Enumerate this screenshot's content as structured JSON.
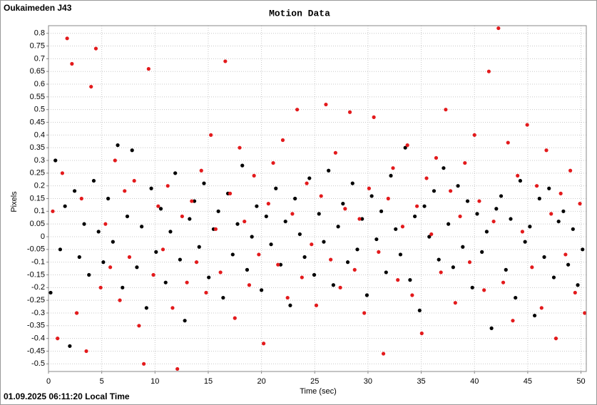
{
  "chart_data": {
    "type": "scatter",
    "title": "Motion Data",
    "station": "Oukaimeden J43",
    "timestamp": "01.09.2025 06:11:20 Local Time",
    "x_label": "Time (sec)",
    "y_label": "Pixels",
    "grid": true,
    "xlim": [
      0,
      50.5
    ],
    "ylim": [
      -0.53,
      0.83
    ],
    "xticks": [
      0,
      5,
      10,
      15,
      20,
      25,
      30,
      35,
      40,
      45,
      50
    ],
    "yticks": [
      0.8,
      0.75,
      0.7,
      0.65,
      0.6,
      0.55,
      0.5,
      0.45,
      0.4,
      0.35,
      0.3,
      0.25,
      0.2,
      0.15,
      0.1,
      0.05,
      0,
      -0.05,
      -0.1,
      -0.15,
      -0.2,
      -0.25,
      -0.3,
      -0.35,
      -0.4,
      -0.45,
      -0.5
    ],
    "series": [
      {
        "color": "#000000",
        "x": [
          0.2,
          0.65,
          1.1,
          1.55,
          2.0,
          2.45,
          2.9,
          3.35,
          3.8,
          4.25,
          4.7,
          5.15,
          5.6,
          6.05,
          6.5,
          6.95,
          7.4,
          7.85,
          8.3,
          8.75,
          9.2,
          9.65,
          10.1,
          10.55,
          11.0,
          11.45,
          11.9,
          12.35,
          12.8,
          13.25,
          13.7,
          14.15,
          14.6,
          15.05,
          15.5,
          15.95,
          16.4,
          16.85,
          17.3,
          17.75,
          18.2,
          18.65,
          19.1,
          19.55,
          20.0,
          20.45,
          20.9,
          21.35,
          21.8,
          22.25,
          22.7,
          23.15,
          23.6,
          24.05,
          24.5,
          24.95,
          25.4,
          25.85,
          26.3,
          26.75,
          27.2,
          27.65,
          28.1,
          28.55,
          29.0,
          29.45,
          29.9,
          30.35,
          30.8,
          31.25,
          31.7,
          32.15,
          32.6,
          33.05,
          33.5,
          33.95,
          34.4,
          34.85,
          35.3,
          35.75,
          36.2,
          36.65,
          37.1,
          37.55,
          38.0,
          38.45,
          38.9,
          39.35,
          39.8,
          40.25,
          40.7,
          41.15,
          41.6,
          42.05,
          42.5,
          42.95,
          43.4,
          43.85,
          44.3,
          44.75,
          45.2,
          45.65,
          46.1,
          46.55,
          47.0,
          47.45,
          47.9,
          48.35,
          48.8,
          49.25,
          49.7,
          50.15
        ],
        "values": [
          -0.22,
          0.3,
          -0.05,
          0.12,
          -0.43,
          0.18,
          -0.08,
          0.05,
          -0.15,
          0.22,
          0.02,
          -0.1,
          0.15,
          -0.02,
          0.36,
          -0.2,
          0.08,
          0.34,
          -0.12,
          0.04,
          -0.28,
          0.19,
          -0.06,
          0.11,
          -0.18,
          0.02,
          0.25,
          -0.09,
          -0.33,
          0.07,
          0.14,
          -0.04,
          0.21,
          -0.16,
          0.03,
          0.1,
          -0.24,
          0.17,
          -0.07,
          0.05,
          0.28,
          -0.13,
          0.0,
          0.12,
          -0.21,
          0.08,
          -0.03,
          0.19,
          -0.11,
          0.06,
          -0.27,
          0.15,
          0.01,
          -0.08,
          0.23,
          -0.15,
          0.09,
          -0.02,
          0.26,
          -0.19,
          0.04,
          0.13,
          -0.1,
          0.21,
          -0.05,
          0.07,
          -0.23,
          0.16,
          -0.01,
          0.1,
          -0.14,
          0.24,
          0.03,
          -0.07,
          0.35,
          -0.17,
          0.08,
          -0.29,
          0.12,
          0.0,
          0.18,
          -0.09,
          0.27,
          0.05,
          -0.12,
          0.2,
          -0.04,
          0.14,
          -0.2,
          0.09,
          -0.06,
          0.02,
          -0.36,
          0.11,
          0.16,
          -0.13,
          0.07,
          -0.24,
          0.22,
          -0.02,
          0.04,
          -0.31,
          0.15,
          -0.08,
          0.19,
          -0.16,
          0.06,
          0.1,
          -0.11,
          0.03,
          -0.19,
          -0.05
        ]
      },
      {
        "color": "#e31a1c",
        "x": [
          0.4,
          0.85,
          1.3,
          1.75,
          2.2,
          2.65,
          3.1,
          3.55,
          4.0,
          4.45,
          4.9,
          5.35,
          5.8,
          6.25,
          6.7,
          7.15,
          7.6,
          8.05,
          8.5,
          8.95,
          9.4,
          9.85,
          10.3,
          10.75,
          11.2,
          11.65,
          12.1,
          12.55,
          13.0,
          13.45,
          13.9,
          14.35,
          14.8,
          15.25,
          15.7,
          16.15,
          16.6,
          17.05,
          17.5,
          17.95,
          18.4,
          18.85,
          19.3,
          19.75,
          20.2,
          20.65,
          21.1,
          21.55,
          22.0,
          22.45,
          22.9,
          23.35,
          23.8,
          24.25,
          24.7,
          25.15,
          25.6,
          26.05,
          26.5,
          26.95,
          27.4,
          27.85,
          28.3,
          28.75,
          29.2,
          29.65,
          30.1,
          30.55,
          31.0,
          31.45,
          31.9,
          32.35,
          32.8,
          33.25,
          33.7,
          34.15,
          34.6,
          35.05,
          35.5,
          35.95,
          36.4,
          36.85,
          37.3,
          37.75,
          38.2,
          38.65,
          39.1,
          39.55,
          40.0,
          40.45,
          40.9,
          41.35,
          41.8,
          42.25,
          42.7,
          43.15,
          43.6,
          44.05,
          44.5,
          44.95,
          45.4,
          45.85,
          46.3,
          46.75,
          47.2,
          47.65,
          48.1,
          48.55,
          49.0,
          49.45,
          49.9,
          50.35
        ],
        "values": [
          0.1,
          -0.4,
          0.25,
          0.78,
          0.68,
          -0.3,
          0.15,
          -0.45,
          0.59,
          0.74,
          -0.2,
          0.05,
          -0.12,
          0.3,
          -0.25,
          0.18,
          -0.08,
          0.22,
          -0.35,
          -0.5,
          0.66,
          -0.15,
          0.12,
          -0.05,
          0.2,
          -0.28,
          -0.52,
          0.08,
          -0.18,
          0.14,
          -0.1,
          0.26,
          -0.22,
          0.4,
          0.03,
          -0.14,
          0.69,
          0.17,
          -0.32,
          0.35,
          0.06,
          -0.19,
          0.24,
          -0.07,
          -0.42,
          0.13,
          0.29,
          -0.11,
          0.38,
          -0.24,
          0.09,
          0.5,
          -0.16,
          0.21,
          -0.03,
          -0.27,
          0.16,
          0.52,
          -0.09,
          0.33,
          -0.2,
          0.11,
          0.49,
          -0.13,
          0.07,
          -0.3,
          0.19,
          0.47,
          -0.06,
          -0.46,
          0.15,
          0.27,
          -0.17,
          0.04,
          0.36,
          -0.23,
          0.12,
          -0.38,
          0.23,
          0.01,
          0.31,
          -0.14,
          0.5,
          0.18,
          -0.26,
          0.08,
          0.29,
          -0.1,
          0.4,
          0.14,
          -0.21,
          0.65,
          0.06,
          0.82,
          -0.18,
          0.37,
          -0.33,
          0.24,
          0.02,
          0.44,
          -0.12,
          0.2,
          -0.28,
          0.34,
          0.09,
          -0.4,
          0.17,
          -0.07,
          0.26,
          -0.22,
          0.13,
          -0.3
        ]
      }
    ]
  }
}
